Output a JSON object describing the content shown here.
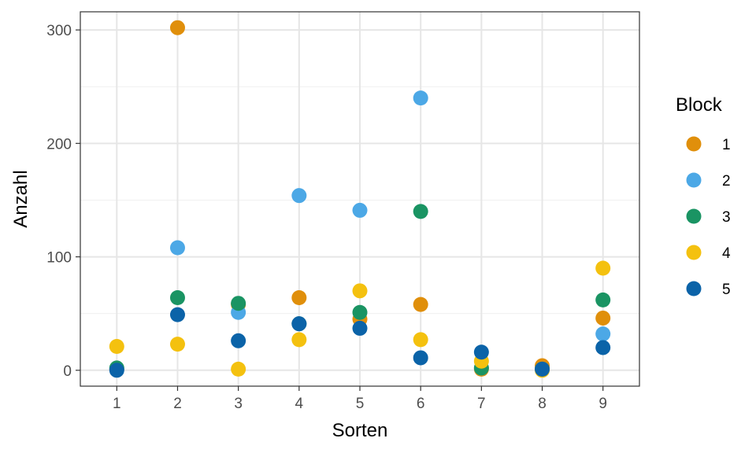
{
  "chart_data": {
    "type": "scatter",
    "xlabel": "Sorten",
    "ylabel": "Anzahl",
    "x_ticks": [
      "1",
      "2",
      "3",
      "4",
      "5",
      "6",
      "7",
      "8",
      "9"
    ],
    "y_ticks": [
      0,
      100,
      200,
      300
    ],
    "xlim": [
      0.4,
      9.6
    ],
    "ylim": [
      -14,
      316
    ],
    "grid": true,
    "legend": {
      "title": "Block",
      "position": "right"
    },
    "series": [
      {
        "name": "1",
        "color": "#E08F0B",
        "x": [
          1,
          2,
          3,
          4,
          5,
          6,
          7,
          8,
          9
        ],
        "y": [
          1,
          302,
          58,
          64,
          45,
          58,
          1,
          4,
          46
        ]
      },
      {
        "name": "2",
        "color": "#4CA8E6",
        "x": [
          1,
          2,
          3,
          4,
          5,
          6,
          7,
          8,
          9
        ],
        "y": [
          1,
          108,
          51,
          154,
          141,
          240,
          2,
          1,
          32
        ]
      },
      {
        "name": "3",
        "color": "#1A9463",
        "x": [
          1,
          2,
          3,
          4,
          5,
          6,
          7,
          8,
          9
        ],
        "y": [
          2,
          64,
          59,
          41,
          51,
          140,
          2,
          1,
          62
        ]
      },
      {
        "name": "4",
        "color": "#F4C10F",
        "x": [
          1,
          2,
          3,
          4,
          5,
          6,
          7,
          8,
          9
        ],
        "y": [
          21,
          23,
          1,
          27,
          70,
          27,
          8,
          0,
          90
        ]
      },
      {
        "name": "5",
        "color": "#0B63A8",
        "x": [
          1,
          2,
          3,
          4,
          5,
          6,
          7,
          8,
          9
        ],
        "y": [
          0,
          49,
          26,
          41,
          37,
          11,
          16,
          1,
          20
        ]
      }
    ]
  }
}
